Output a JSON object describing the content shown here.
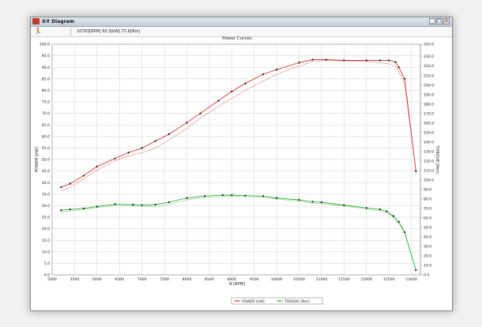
{
  "window": {
    "title": "X-Y Diagram",
    "minimize_label": "_",
    "maximize_label": "□",
    "close_label": "x"
  },
  "status_bar": {
    "run_icon": "running-person-icon",
    "readout": "10793[RPM]  93.3[kW]  75.6[Nm]"
  },
  "colors": {
    "power": "#cc2222",
    "torque": "#22aa22",
    "grid": "#c8c8c8"
  },
  "chart_data": {
    "type": "line",
    "title": "Power Curves",
    "xlabel": "N [RPM]",
    "ylabel": "POWER [kW]",
    "y2label": "TORQUE [Nm]",
    "xlim": [
      5000,
      13200
    ],
    "ylim": [
      0,
      100
    ],
    "y2lim": [
      0,
      243
    ],
    "x_ticks": [
      "5000",
      "5500",
      "6000",
      "6500",
      "7000",
      "7500",
      "8000",
      "8500",
      "9000",
      "9500",
      "10000",
      "10500",
      "11000",
      "11500",
      "12000",
      "12500",
      "13000"
    ],
    "y_ticks": [
      "0.0",
      "5.0",
      "10.0",
      "15.0",
      "20.0",
      "25.0",
      "30.0",
      "35.0",
      "40.0",
      "45.0",
      "50.0",
      "55.0",
      "60.0",
      "65.0",
      "70.0",
      "75.0",
      "80.0",
      "85.0",
      "90.0",
      "95.0",
      "100.0"
    ],
    "y2_ticks": [
      "0.0",
      "10.0",
      "20.0",
      "30.0",
      "40.0",
      "50.0",
      "60.0",
      "70.0",
      "80.0",
      "90.0",
      "100.0",
      "110.0",
      "120.0",
      "130.0",
      "140.0",
      "150.0",
      "160.0",
      "170.0",
      "180.0",
      "190.0",
      "200.0",
      "210.0",
      "220.0",
      "230.0",
      "243.0"
    ],
    "grid": true,
    "legend_position": "bottom",
    "series": [
      {
        "name": "POWER [kW]",
        "axis": "left",
        "x": [
          5200,
          5400,
          5700,
          6000,
          6400,
          6700,
          7000,
          7300,
          7600,
          8000,
          8300,
          8700,
          9000,
          9300,
          9700,
          10000,
          10500,
          10800,
          11100,
          11500,
          12000,
          12300,
          12500,
          12650,
          12720,
          12850,
          13100
        ],
        "values": [
          38,
          39.5,
          43,
          47,
          50.5,
          53,
          55,
          58,
          61,
          66,
          70,
          75.5,
          79.5,
          83,
          87,
          89,
          92,
          93.3,
          93.3,
          93,
          93,
          93,
          93,
          92.3,
          90,
          85,
          45
        ],
        "dashed_values": [
          36.5,
          38,
          41.5,
          45.5,
          49.5,
          51.5,
          53,
          55,
          58.5,
          63.5,
          68,
          73,
          76.5,
          80,
          84,
          87,
          90.5,
          92.5,
          93,
          92.8,
          92.5,
          92,
          91.5,
          90.5,
          88,
          83,
          45
        ]
      },
      {
        "name": "TORQUE [Nm]",
        "axis": "right",
        "x": [
          5200,
          5400,
          5700,
          6000,
          6400,
          6800,
          7000,
          7300,
          7600,
          8000,
          8400,
          8800,
          9000,
          9300,
          9700,
          10000,
          10500,
          10800,
          11000,
          11500,
          12000,
          12300,
          12450,
          12600,
          12720,
          12850,
          13100
        ],
        "values": [
          68,
          69,
          70,
          72,
          74.5,
          74,
          73.5,
          74,
          76.5,
          81,
          83,
          84,
          84,
          83.5,
          83,
          81,
          79,
          77,
          76.5,
          73.5,
          70.5,
          69,
          67,
          62,
          56,
          45,
          5
        ],
        "dashed_values": [
          66,
          67.5,
          69,
          71,
          73,
          72.5,
          72,
          72,
          74,
          79,
          81.5,
          82.5,
          83,
          82.5,
          81.5,
          80,
          77.5,
          75.5,
          75,
          72.5,
          69.5,
          67.5,
          65.5,
          60.5,
          54.5,
          44,
          5
        ]
      }
    ]
  }
}
